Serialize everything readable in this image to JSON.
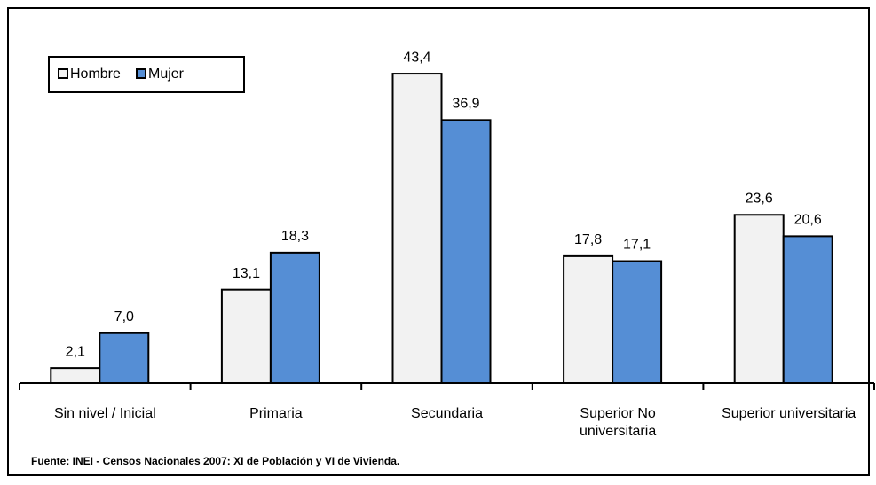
{
  "chart_data": {
    "type": "bar",
    "categories": [
      "Sin nivel / Inicial",
      "Primaria",
      "Secundaria",
      "Superior No universitaria",
      "Superior universitaria"
    ],
    "series": [
      {
        "name": "Hombre",
        "color": "#f2f2f2",
        "values": [
          2.1,
          13.1,
          43.4,
          17.8,
          23.6
        ],
        "value_labels": [
          "2,1",
          "13,1",
          "43,4",
          "17,8",
          "23,6"
        ]
      },
      {
        "name": "Mujer",
        "color": "#558ed5",
        "values": [
          7.0,
          18.3,
          36.9,
          17.1,
          20.6
        ],
        "value_labels": [
          "7,0",
          "18,3",
          "36,9",
          "17,1",
          "20,6"
        ]
      }
    ],
    "ylim": [
      0,
      50
    ],
    "source": "Fuente: INEI - Censos Nacionales 2007: XI de Población y VI de Vivienda."
  }
}
